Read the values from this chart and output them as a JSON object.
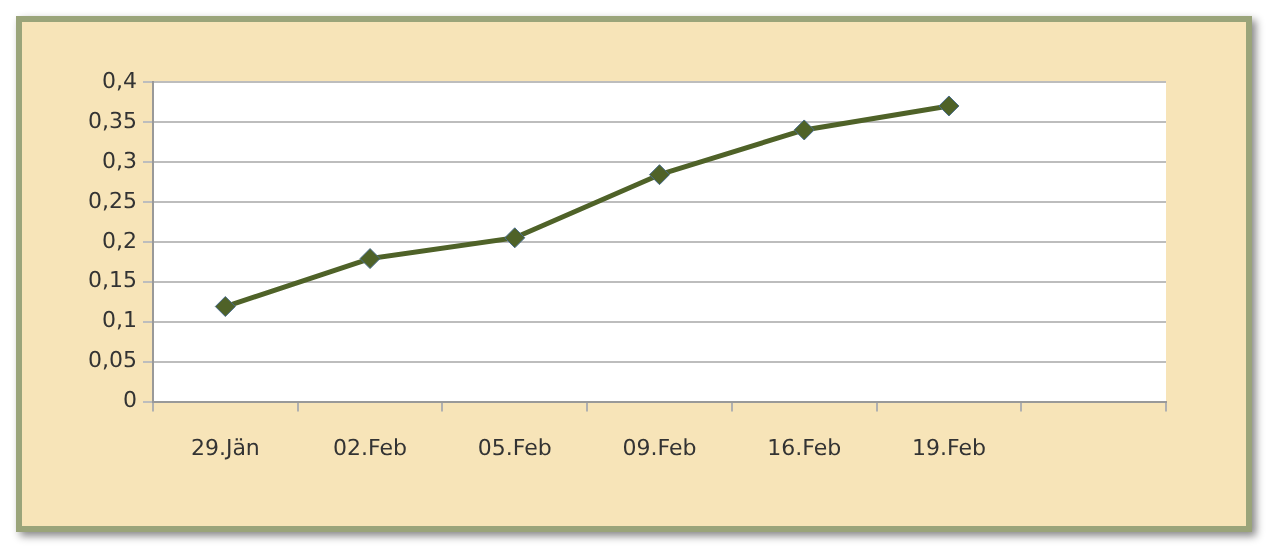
{
  "chart_data": {
    "type": "line",
    "categories": [
      "29.Jän",
      "02.Feb",
      "05.Feb",
      "09.Feb",
      "16.Feb",
      "19.Feb",
      null
    ],
    "series": [
      {
        "color": "#4f6228",
        "values": [
          0.119,
          0.179,
          0.205,
          0.284,
          0.34,
          0.37,
          null
        ]
      }
    ],
    "ylim": [
      0,
      0.4
    ],
    "yticks": [
      0,
      {
        "value": 0.05,
        "label": "0,05"
      },
      {
        "value": 0.1,
        "label": "0,1"
      },
      {
        "value": 0.15,
        "label": "0,15"
      },
      {
        "value": 0.2,
        "label": "0,2"
      },
      {
        "value": 0.25,
        "label": "0,25"
      },
      {
        "value": 0.3,
        "label": "0,3"
      },
      {
        "value": 0.35,
        "label": "0,35"
      },
      {
        "value": 0.4,
        "label": "0,4"
      }
    ],
    "grid": "y",
    "legend": false,
    "marker": "diamond",
    "line_style": "solid"
  }
}
